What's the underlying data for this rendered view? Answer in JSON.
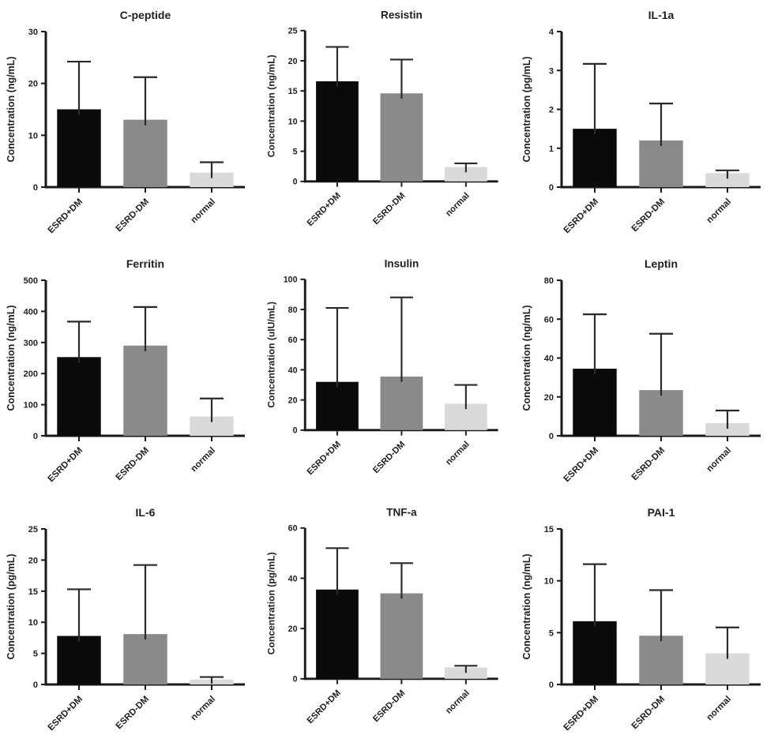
{
  "styles": {
    "bar_colors": [
      "#0a0a0a",
      "#8a8a8a",
      "#dadada"
    ],
    "axis_color": "#1a1a1a",
    "error_color": "#2a2a2a",
    "text_color": "#1f1f1f",
    "background": "#ffffff"
  },
  "chart_data": [
    {
      "type": "bar",
      "id": "c-peptide",
      "title": "C-peptide",
      "ylabel": "Concentration (ng/mL)",
      "ylim": [
        0,
        30
      ],
      "yticks": [
        0,
        10,
        20,
        30
      ],
      "categories": [
        "ESRD+DM",
        "ESRD-DM",
        "normal"
      ],
      "values": [
        15,
        13,
        2.8
      ],
      "sd": [
        9.2,
        8.2,
        2.0
      ],
      "legend": "none",
      "grid": false
    },
    {
      "type": "bar",
      "id": "resistin",
      "title": "Resistin",
      "ylabel": "Concentration (ng/mL)",
      "ylim": [
        0,
        25
      ],
      "yticks": [
        0,
        5,
        10,
        15,
        20,
        25
      ],
      "categories": [
        "ESRD+DM",
        "ESRD-DM",
        "normal"
      ],
      "values": [
        16.6,
        14.6,
        2.4
      ],
      "sd": [
        5.7,
        5.6,
        0.6
      ],
      "legend": "none",
      "grid": false
    },
    {
      "type": "bar",
      "id": "il-1a",
      "title": "IL-1a",
      "ylabel": "Concentration (pg/mL)",
      "ylim": [
        0,
        4
      ],
      "yticks": [
        0,
        1,
        2,
        3,
        4
      ],
      "categories": [
        "ESRD+DM",
        "ESRD-DM",
        "normal"
      ],
      "values": [
        1.5,
        1.2,
        0.36
      ],
      "sd": [
        1.67,
        0.95,
        0.07
      ],
      "legend": "none",
      "grid": false
    },
    {
      "type": "bar",
      "id": "ferritin",
      "title": "Ferritin",
      "ylabel": "Concentration (ng/mL)",
      "ylim": [
        0,
        500
      ],
      "yticks": [
        0,
        100,
        200,
        300,
        400,
        500
      ],
      "categories": [
        "ESRD+DM",
        "ESRD-DM",
        "normal"
      ],
      "values": [
        253,
        290,
        62
      ],
      "sd": [
        114,
        124,
        58
      ],
      "legend": "none",
      "grid": false
    },
    {
      "type": "bar",
      "id": "insulin",
      "title": "Insulin",
      "ylabel": "Concentration (uIU/mL)",
      "ylim": [
        0,
        100
      ],
      "yticks": [
        0,
        20,
        40,
        60,
        80,
        100
      ],
      "categories": [
        "ESRD+DM",
        "ESRD-DM",
        "normal"
      ],
      "values": [
        32,
        35.5,
        17.5
      ],
      "sd": [
        49,
        52.5,
        12.5
      ],
      "legend": "none",
      "grid": false
    },
    {
      "type": "bar",
      "id": "leptin",
      "title": "Leptin",
      "ylabel": "Concentration (ng/mL)",
      "ylim": [
        0,
        80
      ],
      "yticks": [
        0,
        20,
        40,
        60,
        80
      ],
      "categories": [
        "ESRD+DM",
        "ESRD-DM",
        "normal"
      ],
      "values": [
        34.5,
        23.5,
        6.5
      ],
      "sd": [
        28,
        29,
        6.5
      ],
      "legend": "none",
      "grid": false
    },
    {
      "type": "bar",
      "id": "il-6",
      "title": "IL-6",
      "ylabel": "Concentration (pg/mL)",
      "ylim": [
        0,
        25
      ],
      "yticks": [
        0,
        5,
        10,
        15,
        20,
        25
      ],
      "categories": [
        "ESRD+DM",
        "ESRD-DM",
        "normal"
      ],
      "values": [
        7.8,
        8.1,
        0.8
      ],
      "sd": [
        7.5,
        11.1,
        0.4
      ],
      "legend": "none",
      "grid": false
    },
    {
      "type": "bar",
      "id": "tnf-a",
      "title": "TNF-a",
      "ylabel": "Concentration (pg/mL)",
      "ylim": [
        0,
        60
      ],
      "yticks": [
        0,
        20,
        40,
        60
      ],
      "categories": [
        "ESRD+DM",
        "ESRD-DM",
        "normal"
      ],
      "values": [
        35.5,
        34,
        4.5
      ],
      "sd": [
        16.5,
        12,
        0.7
      ],
      "legend": "none",
      "grid": false
    },
    {
      "type": "bar",
      "id": "pai-1",
      "title": "PAI-1",
      "ylabel": "Concentration (ng/mL)",
      "ylim": [
        0,
        15
      ],
      "yticks": [
        0,
        5,
        10,
        15
      ],
      "categories": [
        "ESRD+DM",
        "ESRD-DM",
        "normal"
      ],
      "values": [
        6.1,
        4.7,
        3.0
      ],
      "sd": [
        5.5,
        4.4,
        2.5
      ],
      "legend": "none",
      "grid": false
    }
  ]
}
